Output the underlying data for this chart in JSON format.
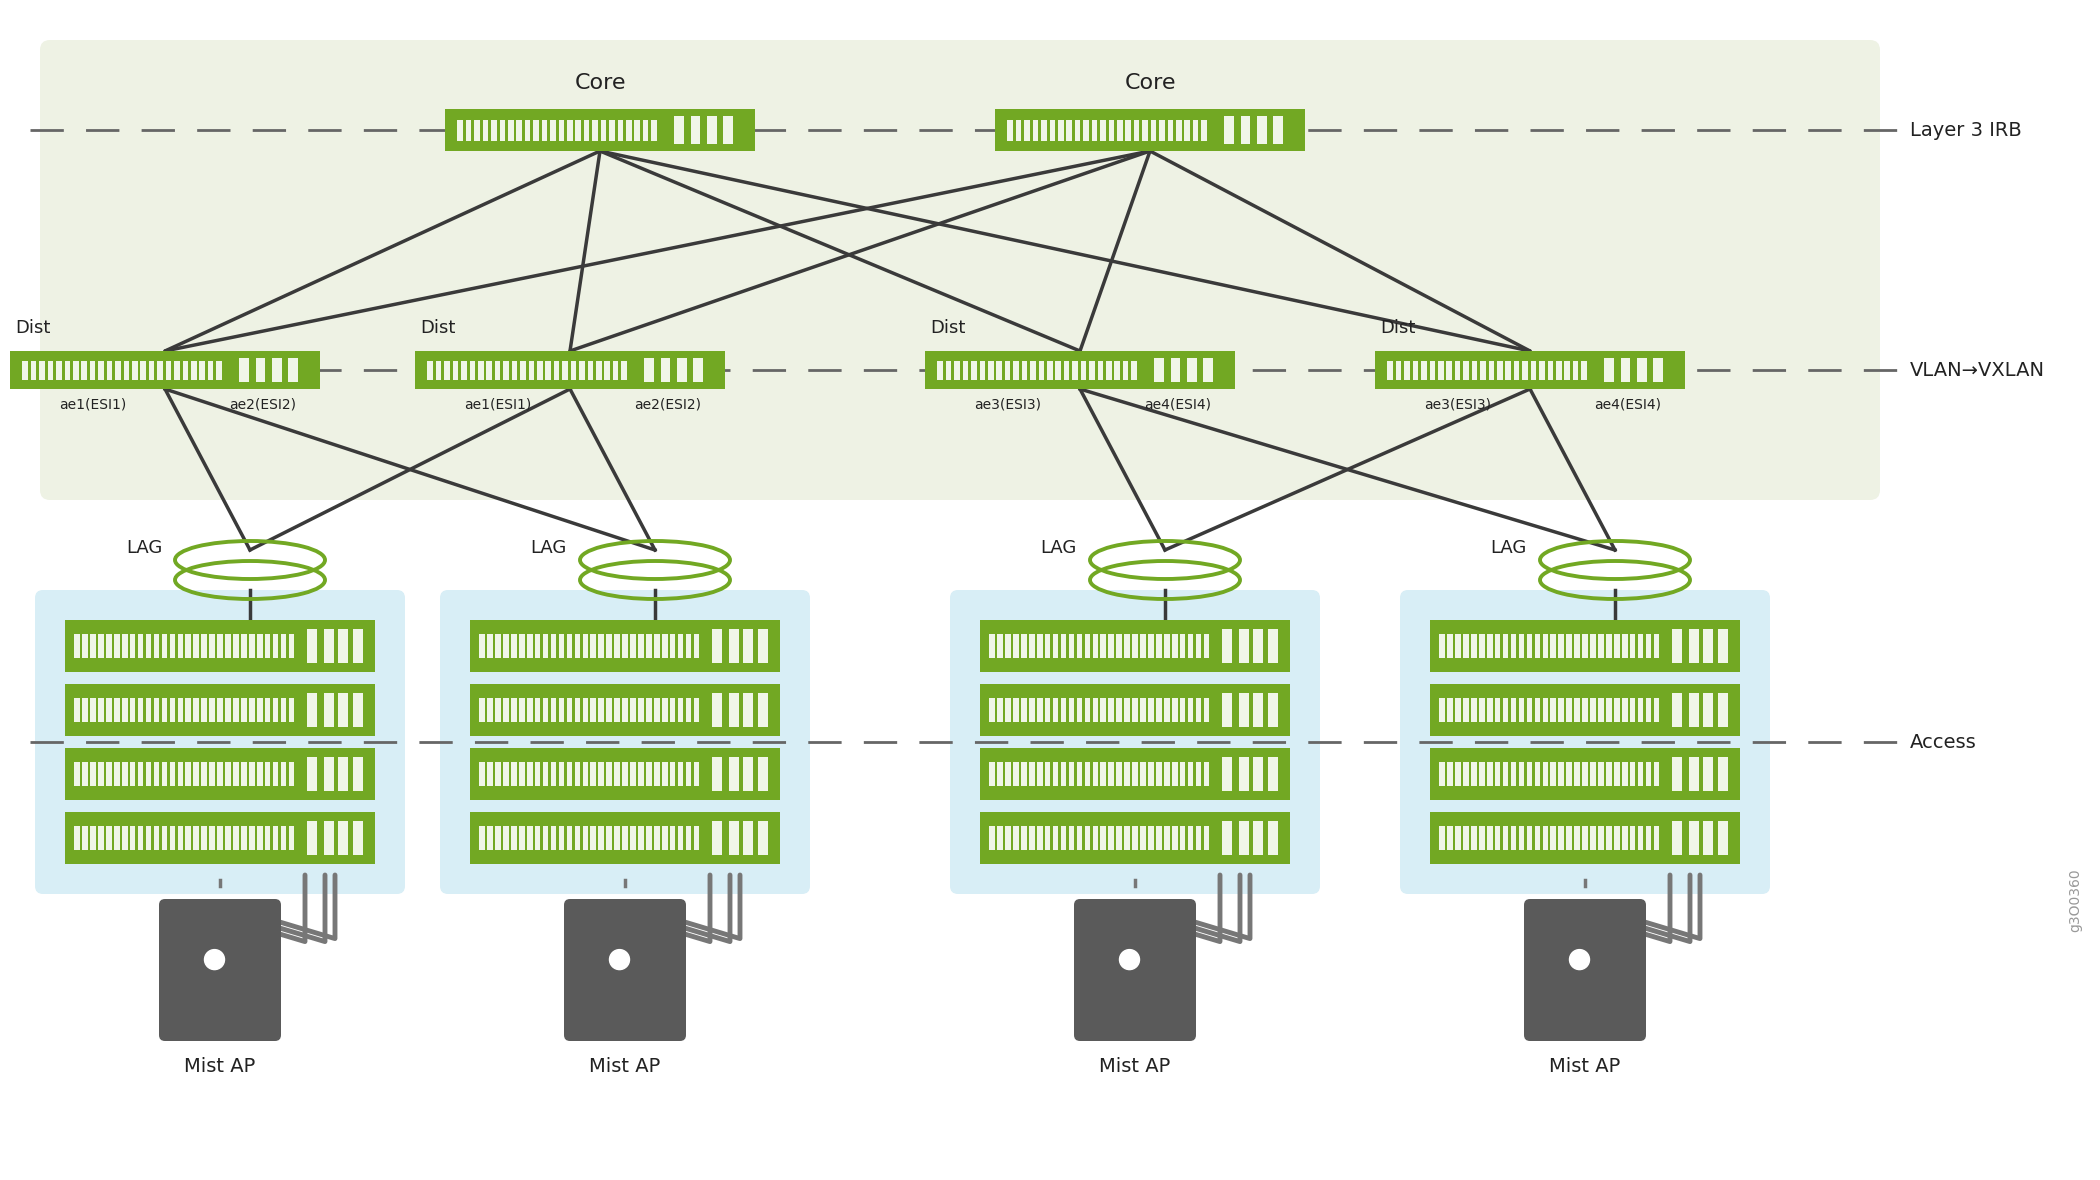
{
  "bg_color": "#ffffff",
  "green_bg": "#eef2e4",
  "switch_green": "#72a823",
  "access_bg": "#d8eef6",
  "line_color": "#3a3a3a",
  "lag_color": "#72a823",
  "ap_color": "#5a5a5a",
  "cable_color": "#777777",
  "dashed_color": "#666666",
  "label_color": "#222222",
  "core_label": "Core",
  "dist_label": "Dist",
  "lag_label": "LAG",
  "access_label": "Access",
  "layer3_label": "Layer 3 IRB",
  "vlan_label": "VLAN→VXLAN",
  "mist_ap_label": "Mist AP",
  "code_label": "g3O0360",
  "all_dist_sublabels": [
    [
      "ae1(ESI1)",
      "ae2(ESI2)"
    ],
    [
      "ae1(ESI1)",
      "ae2(ESI2)"
    ],
    [
      "ae3(ESI3)",
      "ae4(ESI4)"
    ],
    [
      "ae3(ESI3)",
      "ae4(ESI4)"
    ]
  ]
}
